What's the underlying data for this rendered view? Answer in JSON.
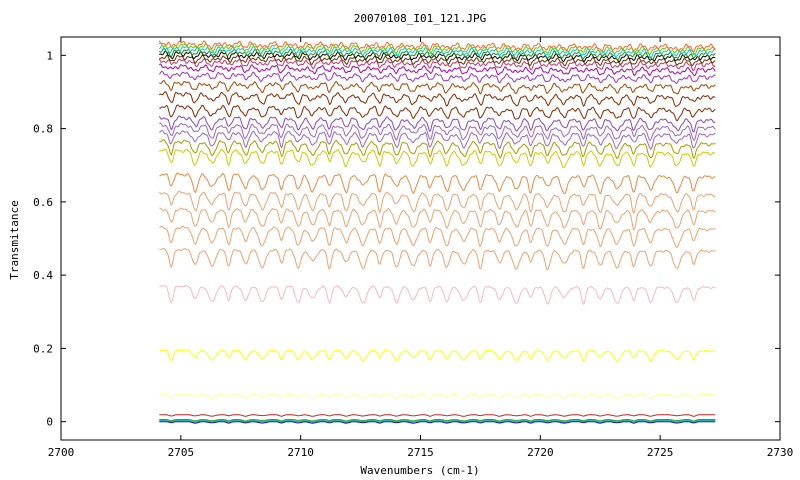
{
  "chart_data": {
    "type": "line",
    "title": "20070108_I01_121.JPG",
    "xlabel": "Wavenumbers (cm-1)",
    "ylabel": "Transmitance",
    "xlim": [
      2700,
      2730
    ],
    "ylim": [
      -0.05,
      1.05
    ],
    "x_ticks": [
      "2700",
      "2705",
      "2710",
      "2715",
      "2720",
      "2725",
      "2730"
    ],
    "y_ticks": [
      "0",
      "0.2",
      "0.4",
      "0.6",
      "0.8",
      "1"
    ],
    "x_range_data": [
      2704.1,
      2727.3
    ],
    "grid": false,
    "legend": "none",
    "absorption_lines_cm1": [
      2704.6,
      2705.6,
      2706.3,
      2707.0,
      2707.7,
      2708.4,
      2709.2,
      2709.9,
      2710.5,
      2711.2,
      2711.9,
      2712.6,
      2713.3,
      2714.0,
      2714.7,
      2715.4,
      2716.1,
      2716.8,
      2717.5,
      2718.3,
      2719.0,
      2719.6,
      2720.3,
      2721.0,
      2721.8,
      2722.5,
      2723.2,
      2723.9,
      2724.6,
      2725.7,
      2726.4
    ],
    "series": [
      {
        "color": "#0000cc",
        "baseline": 0.0
      },
      {
        "color": "#00aaaa",
        "baseline": 0.003
      },
      {
        "color": "#22aa22",
        "baseline": 0.006
      },
      {
        "color": "#cc2222",
        "baseline": 0.019
      },
      {
        "color": "#ffff99",
        "baseline": 0.075
      },
      {
        "color": "#ffff00",
        "baseline": 0.195
      },
      {
        "color": "#ffb6c1",
        "baseline": 0.37
      },
      {
        "color": "#f4a070",
        "baseline": 0.47
      },
      {
        "color": "#f4a070",
        "baseline": 0.53
      },
      {
        "color": "#f4a070",
        "baseline": 0.58
      },
      {
        "color": "#f4a070",
        "baseline": 0.625
      },
      {
        "color": "#ee8844",
        "baseline": 0.675
      },
      {
        "color": "#cccc00",
        "baseline": 0.74
      },
      {
        "color": "#aa9900",
        "baseline": 0.765
      },
      {
        "color": "#9966cc",
        "baseline": 0.79
      },
      {
        "color": "#9966cc",
        "baseline": 0.81
      },
      {
        "color": "#8844cc",
        "baseline": 0.83
      },
      {
        "color": "#8b2500",
        "baseline": 0.86
      },
      {
        "color": "#8b2500",
        "baseline": 0.895
      },
      {
        "color": "#aa4400",
        "baseline": 0.925
      },
      {
        "color": "#9932cc",
        "baseline": 0.95
      },
      {
        "color": "#aa00aa",
        "baseline": 0.97
      },
      {
        "color": "#cc3366",
        "baseline": 0.985
      },
      {
        "color": "#663300",
        "baseline": 0.995
      },
      {
        "color": "#000000",
        "baseline": 1.005
      },
      {
        "color": "#228b22",
        "baseline": 1.012
      },
      {
        "color": "#00cccc",
        "baseline": 1.02
      },
      {
        "color": "#66cc00",
        "baseline": 1.027
      },
      {
        "color": "#ff6633",
        "baseline": 1.034
      }
    ]
  }
}
